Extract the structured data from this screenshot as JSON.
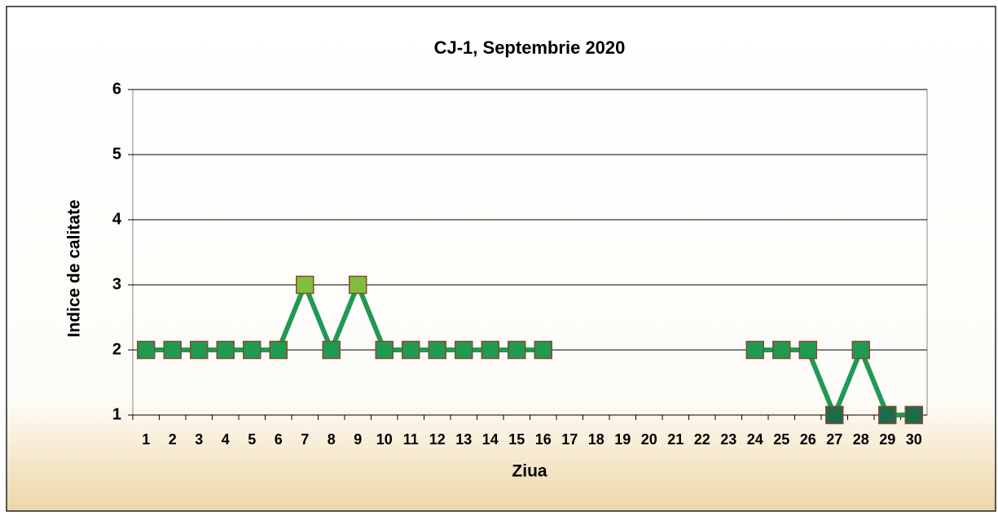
{
  "chart_data": {
    "type": "line",
    "title": "CJ-1, Septembrie 2020",
    "x_label": "Ziua",
    "y_label": "Indice de calitate",
    "categories": [
      "1",
      "2",
      "3",
      "4",
      "5",
      "6",
      "7",
      "8",
      "9",
      "10",
      "11",
      "12",
      "13",
      "14",
      "15",
      "16",
      "17",
      "18",
      "19",
      "20",
      "21",
      "22",
      "23",
      "24",
      "25",
      "26",
      "27",
      "28",
      "29",
      "30"
    ],
    "values": [
      2,
      2,
      2,
      2,
      2,
      2,
      3,
      2,
      3,
      2,
      2,
      2,
      2,
      2,
      2,
      2,
      null,
      null,
      null,
      null,
      null,
      null,
      null,
      2,
      2,
      2,
      1,
      2,
      1,
      1
    ],
    "color": "#1f9a52",
    "marker_colors": [
      "#1f9a52",
      "#1f9a52",
      "#1f9a52",
      "#1f9a52",
      "#1f9a52",
      "#1f9a52",
      "#7fbf3f",
      "#1f9a52",
      "#7fbf3f",
      "#1f9a52",
      "#1f9a52",
      "#1f9a52",
      "#1f9a52",
      "#1f9a52",
      "#1f9a52",
      "#1f9a52",
      null,
      null,
      null,
      null,
      null,
      null,
      null,
      "#1f9a52",
      "#1f9a52",
      "#1f9a52",
      "#1d6b4a",
      "#1f9a52",
      "#1d6b4a",
      "#1d6b4a"
    ],
    "ylim": [
      1,
      6
    ],
    "yticks": [
      1,
      2,
      3,
      4,
      5,
      6
    ],
    "grid": true
  }
}
